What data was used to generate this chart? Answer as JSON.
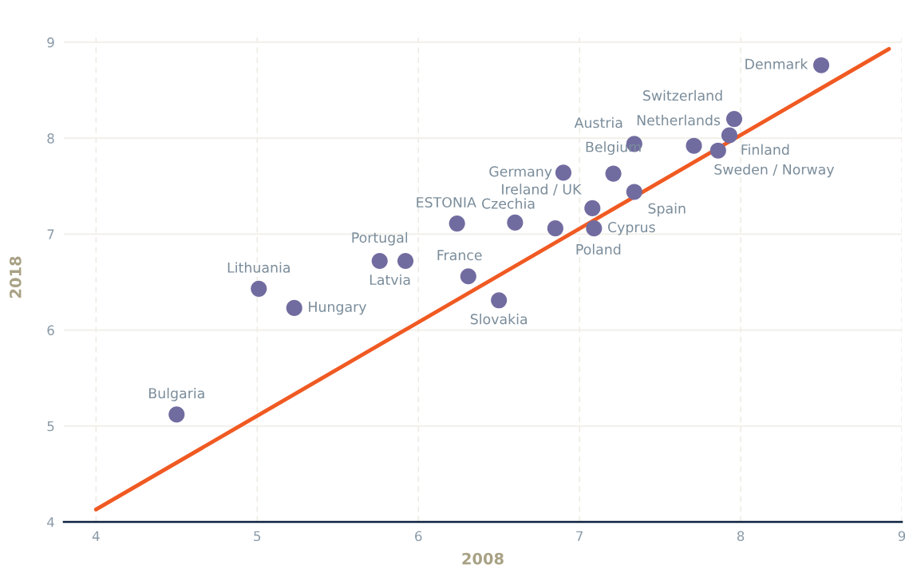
{
  "chart_data": {
    "type": "scatter",
    "xlabel": "2008",
    "ylabel": "2018",
    "xlim": [
      3.8,
      9
    ],
    "ylim": [
      4,
      9.1
    ],
    "xticks": [
      4,
      5,
      6,
      7,
      8,
      9
    ],
    "yticks": [
      4,
      5,
      6,
      7,
      8,
      9
    ],
    "grid": true,
    "series": [
      {
        "color": "#716ca0",
        "marker": "circle",
        "x": [
          8.5,
          7.96,
          7.71,
          7.93,
          7.86,
          7.34,
          7.21,
          6.9,
          7.34,
          7.08,
          7.09,
          6.85,
          6.6,
          6.24,
          5.76,
          5.92,
          6.31,
          6.5,
          5.01,
          5.23,
          4.5
        ],
        "values": [
          8.76,
          8.2,
          7.92,
          8.03,
          7.87,
          7.94,
          7.63,
          7.64,
          7.44,
          7.27,
          7.06,
          7.06,
          7.12,
          7.11,
          6.72,
          6.72,
          6.56,
          6.31,
          6.43,
          6.23,
          5.12
        ]
      },
      {
        "type": "line",
        "color": "#f05a22",
        "x": [
          4,
          8.92
        ],
        "values": [
          4.13,
          8.93
        ]
      }
    ],
    "annotations": [
      {
        "text": "Denmark",
        "x": 8.5,
        "y": 8.76
      },
      {
        "text": "Switzerland",
        "x": 7.96,
        "y": 8.2
      },
      {
        "text": "Netherlands",
        "x": 7.71,
        "y": 7.92
      },
      {
        "text": "Finland",
        "x": 7.93,
        "y": 8.03
      },
      {
        "text": "Sweden / Norway",
        "x": 7.86,
        "y": 7.87
      },
      {
        "text": "Austria",
        "x": 7.34,
        "y": 7.94
      },
      {
        "text": "Belgium",
        "x": 7.21,
        "y": 7.63
      },
      {
        "text": "Germany",
        "x": 6.9,
        "y": 7.64
      },
      {
        "text": "Spain",
        "x": 7.34,
        "y": 7.44
      },
      {
        "text": "Ireland / UK",
        "x": 7.08,
        "y": 7.27
      },
      {
        "text": "Cyprus",
        "x": 7.09,
        "y": 7.06
      },
      {
        "text": "Poland",
        "x": 6.85,
        "y": 7.06
      },
      {
        "text": "Czechia",
        "x": 6.6,
        "y": 7.12
      },
      {
        "text": "ESTONIA",
        "x": 6.24,
        "y": 7.11
      },
      {
        "text": "Portugal",
        "x": 5.76,
        "y": 6.72
      },
      {
        "text": "Latvia",
        "x": 5.92,
        "y": 6.72
      },
      {
        "text": "France",
        "x": 6.31,
        "y": 6.56
      },
      {
        "text": "Slovakia",
        "x": 6.5,
        "y": 6.31
      },
      {
        "text": "Lithuania",
        "x": 5.01,
        "y": 6.43
      },
      {
        "text": "Hungary",
        "x": 5.23,
        "y": 6.23
      },
      {
        "text": "Bulgaria",
        "x": 4.5,
        "y": 5.12
      }
    ]
  }
}
